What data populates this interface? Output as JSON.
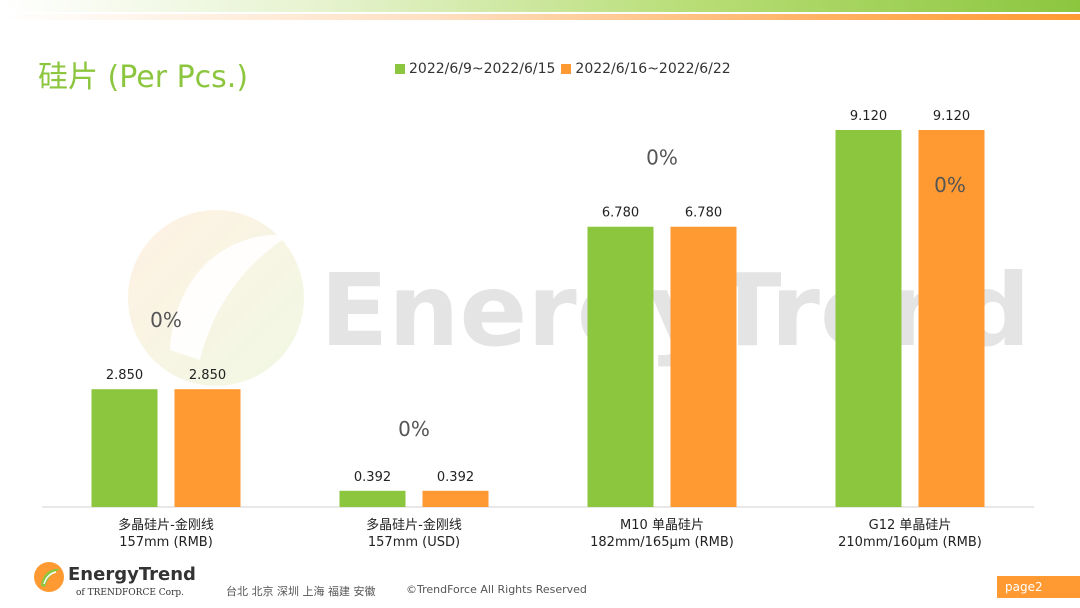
{
  "header": {
    "title": "硅片 (Per Pcs.)"
  },
  "legend": [
    {
      "label": "2022/6/9~2022/6/15",
      "color": "#8cc63f"
    },
    {
      "label": "2022/6/16~2022/6/22",
      "color": "#ff9a33"
    }
  ],
  "watermark": {
    "text": "EnergyTrend"
  },
  "chart_data": {
    "type": "bar",
    "title": "硅片 (Per Pcs.)",
    "categories": [
      [
        "多晶硅片-金刚线",
        "157mm (RMB)"
      ],
      [
        "多晶硅片-金刚线",
        "157mm (USD)"
      ],
      [
        "M10 单晶硅片",
        "182mm/165μm (RMB)"
      ],
      [
        "G12 单晶硅片",
        "210mm/160μm  (RMB)"
      ]
    ],
    "series": [
      {
        "name": "2022/6/9~2022/6/15",
        "color": "#8cc63f",
        "values": [
          2.85,
          0.392,
          6.78,
          9.12
        ]
      },
      {
        "name": "2022/6/16~2022/6/22",
        "color": "#ff9a33",
        "values": [
          2.85,
          0.392,
          6.78,
          9.12
        ]
      }
    ],
    "value_labels": [
      [
        "2.850",
        "0.392",
        "6.780",
        "9.120"
      ],
      [
        "2.850",
        "0.392",
        "6.780",
        "9.120"
      ]
    ],
    "change_labels": [
      "0%",
      "0%",
      "0%",
      "0%"
    ],
    "ylim": [
      0,
      9.12
    ],
    "xlabel": "",
    "ylabel": "",
    "grid": false
  },
  "footer": {
    "logo_name": "EnergyTrend",
    "logo_sub": "of TRENDFORCE Corp.",
    "cities": "台北  北京  深圳  上海  福建  安徽",
    "copyright": "©TrendForce All Rights Reserved",
    "page": "page2"
  }
}
